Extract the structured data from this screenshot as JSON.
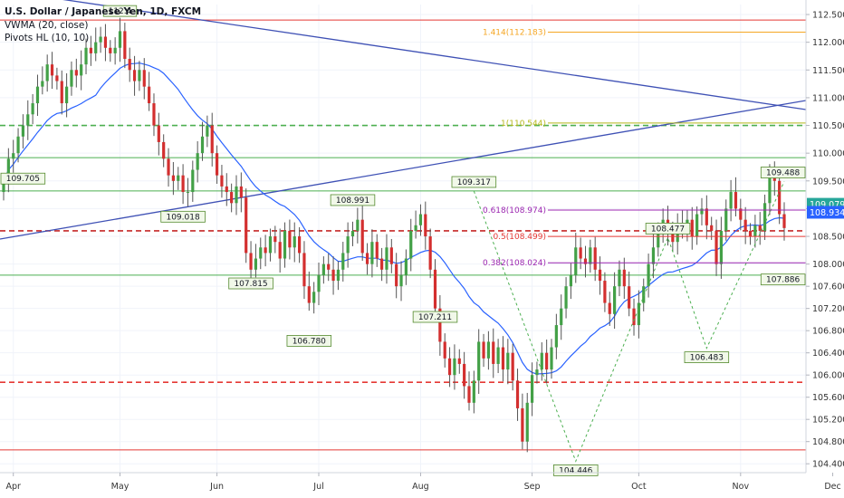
{
  "chart_data": {
    "type": "candlestick",
    "title": "U.S. Dollar / Japanese Yen, 1D, FXCM",
    "indicators": [
      "VWMA (20, close)",
      "Pivots HL (10, 10)"
    ],
    "ylim": [
      104.24,
      112.68
    ],
    "y_ticks": [
      104.4,
      104.8,
      105.2,
      105.6,
      106.0,
      106.4,
      106.8,
      107.2,
      107.6,
      108.0,
      108.5,
      109.0,
      109.5,
      110.0,
      110.5,
      111.0,
      111.5,
      112.0,
      112.5
    ],
    "x_labels": [
      "Apr",
      "May",
      "Jun",
      "Jul",
      "Aug",
      "Sep",
      "Oct",
      "Nov",
      "Dec"
    ],
    "closes": [
      109.5,
      109.9,
      110.0,
      110.3,
      110.5,
      110.7,
      110.9,
      111.2,
      111.3,
      111.6,
      111.4,
      111.3,
      110.9,
      111.2,
      111.5,
      111.4,
      111.6,
      111.9,
      111.8,
      112.0,
      112.1,
      111.9,
      111.8,
      111.9,
      112.2,
      111.7,
      111.5,
      111.3,
      111.5,
      111.2,
      110.9,
      110.5,
      110.2,
      109.9,
      109.6,
      109.5,
      109.6,
      109.3,
      109.3,
      109.7,
      110.0,
      110.3,
      110.5,
      110.0,
      109.6,
      109.4,
      109.3,
      109.1,
      109.4,
      109.2,
      108.2,
      107.9,
      108.1,
      108.3,
      108.2,
      108.5,
      108.4,
      108.1,
      108.6,
      108.3,
      108.5,
      108.2,
      107.6,
      107.3,
      107.5,
      107.8,
      108.0,
      107.9,
      107.7,
      107.9,
      108.2,
      108.5,
      108.6,
      108.8,
      108.2,
      108.0,
      108.4,
      108.1,
      107.9,
      108.3,
      108.0,
      107.6,
      107.8,
      108.1,
      108.6,
      108.7,
      108.9,
      108.5,
      107.9,
      107.2,
      106.6,
      106.3,
      106.0,
      106.3,
      106.2,
      105.8,
      105.5,
      105.9,
      106.6,
      106.3,
      106.6,
      106.2,
      106.5,
      106.1,
      106.4,
      105.9,
      105.4,
      104.8,
      105.5,
      106.0,
      106.1,
      106.4,
      106.1,
      106.5,
      106.9,
      107.2,
      107.6,
      107.8,
      108.3,
      108.1,
      108.0,
      108.3,
      107.9,
      107.7,
      107.3,
      107.1,
      107.6,
      107.9,
      107.6,
      107.2,
      106.9,
      107.3,
      107.6,
      108.0,
      108.3,
      108.6,
      108.8,
      108.6,
      108.4,
      108.7,
      108.6,
      108.8,
      108.5,
      108.9,
      109.0,
      108.7,
      108.6,
      108.0,
      108.6,
      109.0,
      109.3,
      109.0,
      108.8,
      108.6,
      108.5,
      108.7,
      108.6,
      109.1,
      109.6,
      109.5,
      108.9,
      108.65
    ],
    "series": [
      {
        "name": "VWMA (20, close)",
        "color": "#2962ff"
      }
    ],
    "horizontal_levels": [
      {
        "value": 112.4,
        "color": "#e53935",
        "style": "solid"
      },
      {
        "value": 109.92,
        "color": "#4caf50",
        "style": "solid"
      },
      {
        "value": 109.32,
        "color": "#4caf50",
        "style": "solid"
      },
      {
        "value": 107.8,
        "color": "#4caf50",
        "style": "solid"
      },
      {
        "value": 110.5,
        "color": "#4caf50",
        "style": "dashed"
      },
      {
        "value": 108.6,
        "color": "#c62828",
        "style": "dashed"
      },
      {
        "value": 105.87,
        "color": "#e53935",
        "style": "dashed"
      },
      {
        "value": 104.65,
        "color": "#e53935",
        "style": "solid"
      }
    ],
    "fib_levels": [
      {
        "label": "1.414(112.183)",
        "value": 112.183,
        "color": "#f5a623"
      },
      {
        "label": "1(110.544)",
        "value": 110.544,
        "color": "#b5b81a"
      },
      {
        "label": "0.618(108.974)",
        "value": 108.974,
        "color": "#9c27b0"
      },
      {
        "label": "0.5(108.499)",
        "value": 108.499,
        "color": "#e53935"
      },
      {
        "label": "0.382(108.024)",
        "value": 108.024,
        "color": "#9c27b0"
      }
    ],
    "pivot_labels": [
      "109.705",
      "112.4",
      "109.018",
      "107.815",
      "106.780",
      "108.991",
      "107.211",
      "109.317",
      "104.446",
      "108.477",
      "106.483",
      "109.488",
      "107.886"
    ],
    "price_tags": [
      {
        "label": "109.079",
        "value": 109.079,
        "color": "#26a69a"
      },
      {
        "label": "108.934",
        "value": 108.934,
        "color": "#2962ff"
      }
    ]
  }
}
